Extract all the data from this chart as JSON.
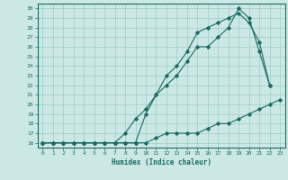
{
  "xlabel": "Humidex (Indice chaleur)",
  "bg_color": "#cce8e5",
  "grid_color": "#9eccc8",
  "line_color": "#1a6b60",
  "xlim": [
    -0.5,
    23.5
  ],
  "ylim": [
    15.5,
    30.5
  ],
  "xticks": [
    0,
    1,
    2,
    3,
    4,
    5,
    6,
    7,
    8,
    9,
    10,
    11,
    12,
    13,
    14,
    15,
    16,
    17,
    18,
    19,
    20,
    21,
    22,
    23
  ],
  "yticks": [
    16,
    17,
    18,
    19,
    20,
    21,
    22,
    23,
    24,
    25,
    26,
    27,
    28,
    29,
    30
  ],
  "line1_x": [
    0,
    1,
    2,
    3,
    4,
    5,
    6,
    7,
    8,
    9,
    10,
    11,
    12,
    13,
    14,
    15,
    16,
    17,
    18,
    19,
    20,
    21,
    22,
    23
  ],
  "line1_y": [
    16,
    16,
    16,
    16,
    16,
    16,
    16,
    16,
    16,
    16,
    16,
    16.5,
    17,
    17,
    17,
    17,
    17.5,
    18,
    18,
    18.5,
    19,
    19.5,
    20,
    20.5
  ],
  "line2_x": [
    0,
    1,
    2,
    3,
    4,
    5,
    6,
    7,
    8,
    9,
    10,
    11,
    12,
    13,
    14,
    15,
    16,
    17,
    18,
    19,
    20,
    21,
    22
  ],
  "line2_y": [
    16,
    16,
    16,
    16,
    16,
    16,
    16,
    16,
    17,
    18.5,
    19.5,
    21,
    23,
    24,
    25.5,
    27.5,
    28,
    28.5,
    29,
    29.5,
    28.5,
    26.5,
    22
  ],
  "line3_x": [
    0,
    1,
    2,
    3,
    4,
    5,
    6,
    7,
    8,
    9,
    10,
    11,
    12,
    13,
    14,
    15,
    16,
    17,
    18,
    19,
    20,
    21,
    22
  ],
  "line3_y": [
    16,
    16,
    16,
    16,
    16,
    16,
    16,
    16,
    16,
    16,
    19,
    21,
    22,
    23,
    24.5,
    26,
    26,
    27,
    28,
    30,
    29,
    25.5,
    22
  ]
}
